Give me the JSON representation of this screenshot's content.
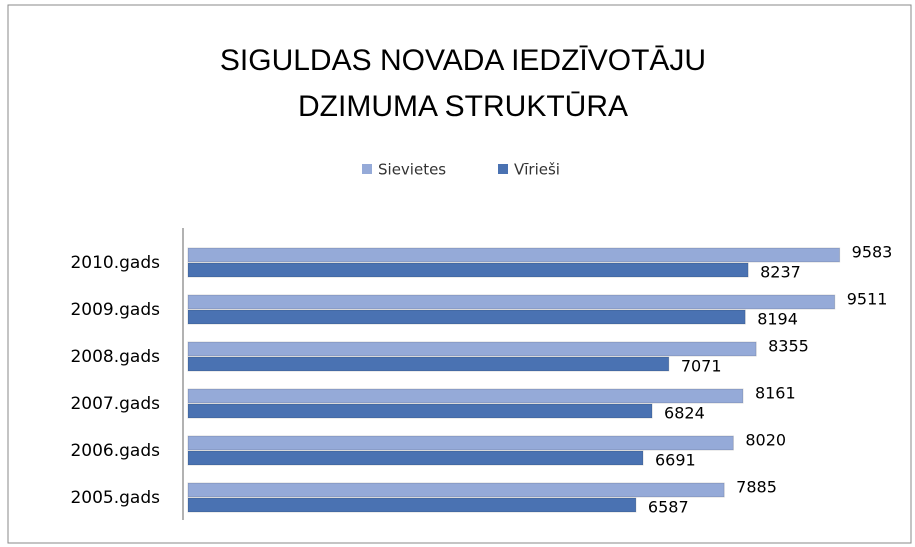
{
  "chart_data": {
    "type": "bar",
    "orientation": "horizontal",
    "title": "SIGULDAS NOVADA IEDZĪVOTĀJU DZIMUMA STRUKTŪRA",
    "title_lines": [
      "SIGULDAS NOVADA IEDZĪVOTĀJU",
      "DZIMUMA STRUKTŪRA"
    ],
    "categories": [
      "2010.gads",
      "2009.gads",
      "2008.gads",
      "2007.gads",
      "2006.gads",
      "2005.gads"
    ],
    "series": [
      {
        "name": "Sievietes",
        "color": "#95aad8",
        "values": [
          9583,
          9511,
          8355,
          8161,
          8020,
          7885
        ]
      },
      {
        "name": "Vīrieši",
        "color": "#4a72b2",
        "values": [
          8237,
          8194,
          7071,
          6824,
          6691,
          6587
        ]
      }
    ],
    "xlim": [
      0,
      10000
    ],
    "legend": "top"
  }
}
